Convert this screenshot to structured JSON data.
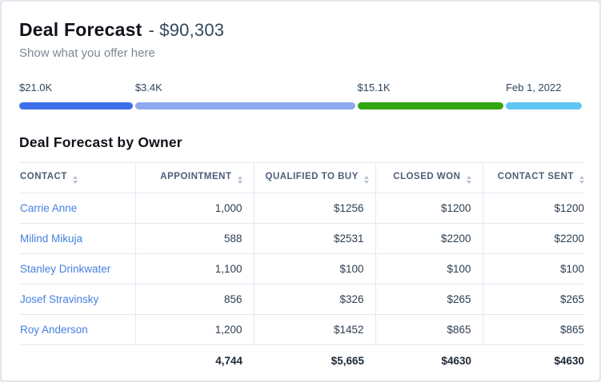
{
  "card": {
    "title": "Deal Forecast",
    "title_amount": "- $90,303",
    "subtitle": "Show what you offer here"
  },
  "forecast_bar": {
    "segments": [
      {
        "label": "$21.0K",
        "color": "#3e6ee9",
        "percent": 20.3
      },
      {
        "label": "$3.4K",
        "color": "#8fa9f0",
        "percent": 39.2
      },
      {
        "label": "$15.1K",
        "color": "#31a512",
        "percent": 26.1
      },
      {
        "label": "Feb 1, 2022",
        "color": "#5fc6f2",
        "percent": 13.5
      }
    ]
  },
  "table": {
    "title": "Deal Forecast by Owner",
    "columns": [
      {
        "label": "CONTACT",
        "key": "contact",
        "align": "left"
      },
      {
        "label": "APPOINTMENT",
        "key": "appointment",
        "align": "right"
      },
      {
        "label": "QUALIFIED TO BUY",
        "key": "qualified_to_buy",
        "align": "right"
      },
      {
        "label": "CLOSED WON",
        "key": "closed_won",
        "align": "right"
      },
      {
        "label": "CONTACT SENT",
        "key": "contact_sent",
        "align": "right"
      }
    ],
    "rows": [
      {
        "contact": "Carrie Anne",
        "appointment": "1,000",
        "qualified_to_buy": "$1256",
        "closed_won": "$1200",
        "contact_sent": "$1200"
      },
      {
        "contact": "Milind Mikuja",
        "appointment": "588",
        "qualified_to_buy": "$2531",
        "closed_won": "$2200",
        "contact_sent": "$2200"
      },
      {
        "contact": "Stanley Drinkwater",
        "appointment": "1,100",
        "qualified_to_buy": "$100",
        "closed_won": "$100",
        "contact_sent": "$100"
      },
      {
        "contact": "Josef Stravinsky",
        "appointment": "856",
        "qualified_to_buy": "$326",
        "closed_won": "$265",
        "contact_sent": "$265"
      },
      {
        "contact": "Roy Anderson",
        "appointment": "1,200",
        "qualified_to_buy": "$1452",
        "closed_won": "$865",
        "contact_sent": "$865"
      }
    ],
    "totals": {
      "appointment": "4,744",
      "qualified_to_buy": "$5,665",
      "closed_won": "$4630",
      "contact_sent": "$4630"
    }
  },
  "colors": {
    "link": "#4680e0",
    "heading": "#10131a",
    "body_text": "#2d3e50",
    "muted_text": "#7d8794",
    "header_text": "#4e5d78",
    "divider": "#e2e8f2",
    "card_border": "#e3e6ec"
  }
}
